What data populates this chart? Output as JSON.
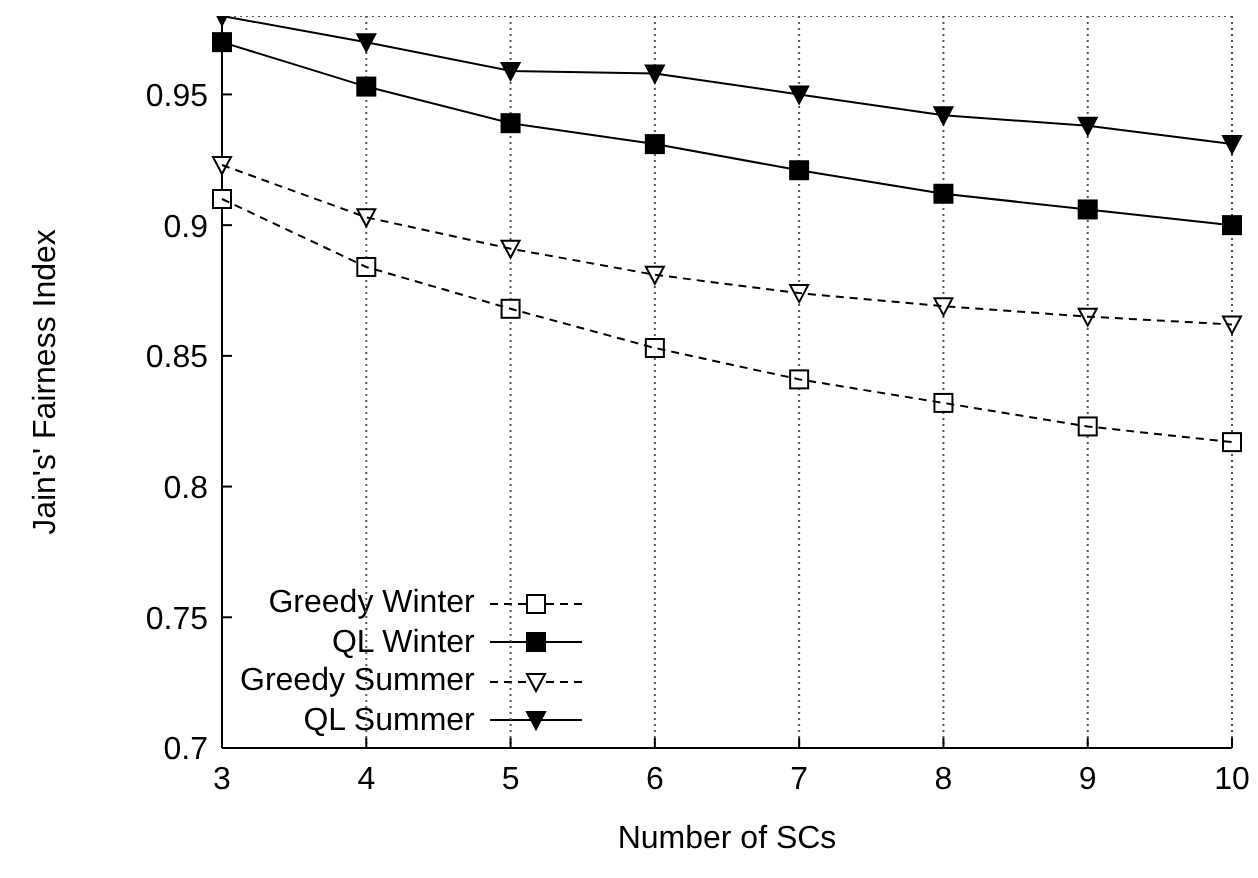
{
  "chart_data": {
    "type": "line",
    "xlabel": "Number of SCs",
    "ylabel": "Jain's' Fairness Index",
    "x": [
      3,
      4,
      5,
      6,
      7,
      8,
      9,
      10
    ],
    "xlim": [
      3,
      10
    ],
    "xticks": [
      3,
      4,
      5,
      6,
      7,
      8,
      9,
      10
    ],
    "ylim": [
      0.7,
      0.98
    ],
    "yticks": [
      0.7,
      0.75,
      0.8,
      0.85,
      0.9,
      0.95
    ],
    "grid": true,
    "legend": "bottom left",
    "series": [
      {
        "name": "Greedy Winter",
        "color": "#000000",
        "marker": "square",
        "line_style": "dashed",
        "values": [
          0.91,
          0.884,
          0.868,
          0.853,
          0.841,
          0.832,
          0.823,
          0.817
        ]
      },
      {
        "name": "QL Winter",
        "color": "#000000",
        "marker": "square",
        "line_style": "solid",
        "values": [
          0.97,
          0.953,
          0.939,
          0.931,
          0.921,
          0.912,
          0.906,
          0.9
        ]
      },
      {
        "name": "Greedy Summer",
        "color": "#000000",
        "marker": "triangle",
        "line_style": "dashed",
        "values": [
          0.923,
          0.903,
          0.891,
          0.881,
          0.874,
          0.869,
          0.865,
          0.862
        ]
      },
      {
        "name": "QL Summer",
        "color": "#000000",
        "marker": "triangle",
        "line_style": "solid",
        "values": [
          0.98,
          0.97,
          0.959,
          0.958,
          0.95,
          0.942,
          0.938,
          0.931
        ]
      }
    ]
  }
}
